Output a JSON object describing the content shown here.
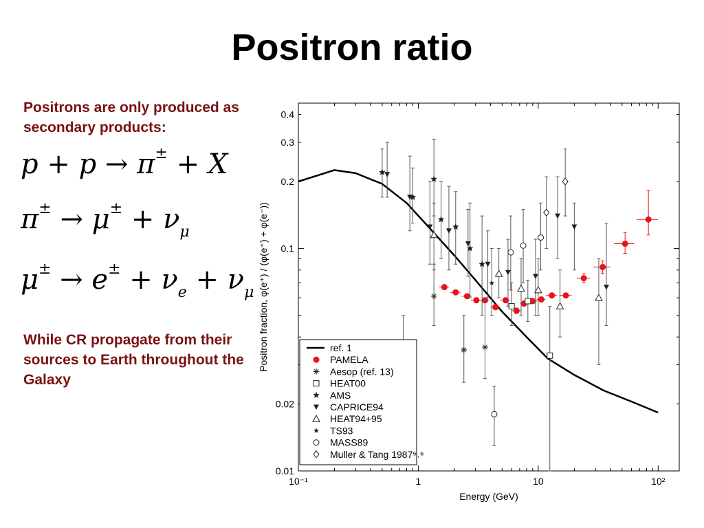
{
  "slide": {
    "title": "Positron ratio",
    "note_top": "Positrons are only produced as secondary products:",
    "note_bottom": "While CR propagate from their sources to Earth throughout the Galaxy"
  },
  "equations": {
    "eq1": {
      "a": "p",
      "plus1": "+",
      "b": "p",
      "arrow": "→",
      "c": "π",
      "c_sup": "±",
      "plus2": "+",
      "d": "X"
    },
    "eq2": {
      "a": "π",
      "a_sup": "±",
      "arrow": "→",
      "b": "μ",
      "b_sup": "±",
      "plus": "+",
      "c": "ν",
      "c_sub": "μ"
    },
    "eq3": {
      "a": "μ",
      "a_sup": "±",
      "arrow": "→",
      "b": "e",
      "b_sup": "±",
      "plus1": "+",
      "c": "ν",
      "c_sub": "e",
      "plus2": "+",
      "d": "ν",
      "d_sub": "μ"
    }
  },
  "chart_data": {
    "type": "scatter",
    "xlabel": "Energy (GeV)",
    "ylabel": "Positron fraction, φ(e⁺) / (φ(e⁺) + φ(e⁻))",
    "xscale": "log",
    "yscale": "log",
    "xlim": [
      0.1,
      150
    ],
    "ylim": [
      0.01,
      0.45
    ],
    "x_ticks": [
      {
        "value": 0.1,
        "label": "10⁻¹"
      },
      {
        "value": 1,
        "label": "1"
      },
      {
        "value": 10,
        "label": "10"
      },
      {
        "value": 100,
        "label": "10²"
      }
    ],
    "y_ticks": [
      {
        "value": 0.4,
        "label": "0.4"
      },
      {
        "value": 0.3,
        "label": "0.3"
      },
      {
        "value": 0.2,
        "label": "0.2"
      },
      {
        "value": 0.1,
        "label": "0.1"
      },
      {
        "value": 0.02,
        "label": "0.02"
      },
      {
        "value": 0.01,
        "label": "0.01"
      }
    ],
    "legend_position": "bottom-left",
    "series": [
      {
        "name": "ref. 1",
        "marker": "line",
        "color": "#000000",
        "points": [
          [
            0.1,
            0.2
          ],
          [
            0.2,
            0.225
          ],
          [
            0.3,
            0.218
          ],
          [
            0.5,
            0.195
          ],
          [
            0.8,
            0.16
          ],
          [
            1.2,
            0.126
          ],
          [
            2,
            0.093
          ],
          [
            3,
            0.072
          ],
          [
            5,
            0.052
          ],
          [
            8,
            0.04
          ],
          [
            12,
            0.032
          ],
          [
            20,
            0.027
          ],
          [
            35,
            0.023
          ],
          [
            60,
            0.0205
          ],
          [
            100,
            0.0183
          ]
        ]
      },
      {
        "name": "PAMELA",
        "marker": "filled-circle",
        "color": "#e8141a",
        "points": [
          {
            "x": 1.65,
            "y": 0.067,
            "xerr": 0.15,
            "ylo": 0.0655,
            "yhi": 0.0685
          },
          {
            "x": 2.05,
            "y": 0.0635,
            "xerr": 0.2,
            "ylo": 0.062,
            "yhi": 0.065
          },
          {
            "x": 2.55,
            "y": 0.061,
            "xerr": 0.25,
            "ylo": 0.0595,
            "yhi": 0.0625
          },
          {
            "x": 3.05,
            "y": 0.0585,
            "xerr": 0.3,
            "ylo": 0.057,
            "yhi": 0.06
          },
          {
            "x": 3.6,
            "y": 0.0585,
            "xerr": 0.3,
            "ylo": 0.057,
            "yhi": 0.06
          },
          {
            "x": 4.4,
            "y": 0.0545,
            "xerr": 0.4,
            "ylo": 0.053,
            "yhi": 0.056
          },
          {
            "x": 5.35,
            "y": 0.0585,
            "xerr": 0.5,
            "ylo": 0.057,
            "yhi": 0.06
          },
          {
            "x": 6.6,
            "y": 0.0525,
            "xerr": 0.6,
            "ylo": 0.051,
            "yhi": 0.054
          },
          {
            "x": 7.6,
            "y": 0.0565,
            "xerr": 0.5,
            "ylo": 0.055,
            "yhi": 0.058
          },
          {
            "x": 9,
            "y": 0.058,
            "xerr": 0.8,
            "ylo": 0.0565,
            "yhi": 0.0595
          },
          {
            "x": 10.6,
            "y": 0.059,
            "xerr": 0.9,
            "ylo": 0.0575,
            "yhi": 0.0605
          },
          {
            "x": 13.0,
            "y": 0.0615,
            "xerr": 1.4,
            "ylo": 0.06,
            "yhi": 0.063
          },
          {
            "x": 17.0,
            "y": 0.0615,
            "xerr": 2.0,
            "ylo": 0.06,
            "yhi": 0.063
          },
          {
            "x": 24.0,
            "y": 0.0735,
            "xerr": 3.0,
            "ylo": 0.07,
            "yhi": 0.077
          },
          {
            "x": 34.5,
            "y": 0.0825,
            "xerr": 5.5,
            "ylo": 0.077,
            "yhi": 0.088
          },
          {
            "x": 53.0,
            "y": 0.105,
            "xerr": 10,
            "ylo": 0.095,
            "yhi": 0.118
          },
          {
            "x": 83.0,
            "y": 0.135,
            "xerr": 17,
            "ylo": 0.115,
            "yhi": 0.182
          }
        ]
      },
      {
        "name": "Aesop (ref. 13)",
        "marker": "asterisk",
        "color": "#222222",
        "points": [
          {
            "x": 0.75,
            "y": 0.035,
            "ylo": 0.027,
            "yhi": 0.05
          },
          {
            "x": 1.35,
            "y": 0.061,
            "ylo": 0.045,
            "yhi": 0.085
          },
          {
            "x": 2.4,
            "y": 0.035,
            "ylo": 0.025,
            "yhi": 0.05
          },
          {
            "x": 3.6,
            "y": 0.036,
            "ylo": 0.026,
            "yhi": 0.058
          }
        ]
      },
      {
        "name": "HEAT00",
        "marker": "open-square",
        "color": "#222222",
        "points": [
          {
            "x": 6.0,
            "y": 0.055,
            "ylo": 0.045,
            "yhi": 0.07
          },
          {
            "x": 8.2,
            "y": 0.058,
            "ylo": 0.047,
            "yhi": 0.072
          },
          {
            "x": 12.5,
            "y": 0.033,
            "ylo": 0.01,
            "yhi": 0.055
          }
        ]
      },
      {
        "name": "AMS",
        "marker": "filled-star",
        "color": "#222222",
        "points": [
          {
            "x": 0.5,
            "y": 0.22,
            "ylo": 0.17,
            "yhi": 0.28
          },
          {
            "x": 0.9,
            "y": 0.17,
            "ylo": 0.13,
            "yhi": 0.23
          },
          {
            "x": 1.35,
            "y": 0.205,
            "ylo": 0.14,
            "yhi": 0.31
          },
          {
            "x": 1.55,
            "y": 0.135,
            "ylo": 0.09,
            "yhi": 0.2
          },
          {
            "x": 2.05,
            "y": 0.125,
            "ylo": 0.085,
            "yhi": 0.18
          },
          {
            "x": 2.7,
            "y": 0.1,
            "ylo": 0.06,
            "yhi": 0.16
          },
          {
            "x": 3.4,
            "y": 0.085,
            "ylo": 0.05,
            "yhi": 0.14
          }
        ]
      },
      {
        "name": "CAPRICE94",
        "marker": "filled-triangle-down",
        "color": "#222222",
        "points": [
          {
            "x": 0.55,
            "y": 0.215,
            "ylo": 0.17,
            "yhi": 0.3
          },
          {
            "x": 0.85,
            "y": 0.17,
            "ylo": 0.12,
            "yhi": 0.26
          },
          {
            "x": 1.25,
            "y": 0.125,
            "ylo": 0.085,
            "yhi": 0.2
          },
          {
            "x": 1.8,
            "y": 0.12,
            "ylo": 0.08,
            "yhi": 0.19
          },
          {
            "x": 2.6,
            "y": 0.105,
            "ylo": 0.075,
            "yhi": 0.15
          },
          {
            "x": 3.8,
            "y": 0.085,
            "ylo": 0.06,
            "yhi": 0.12
          },
          {
            "x": 5.6,
            "y": 0.078,
            "ylo": 0.055,
            "yhi": 0.11
          },
          {
            "x": 9.5,
            "y": 0.075,
            "ylo": 0.05,
            "yhi": 0.11
          },
          {
            "x": 14.5,
            "y": 0.14,
            "ylo": 0.09,
            "yhi": 0.21
          },
          {
            "x": 20.0,
            "y": 0.125,
            "ylo": 0.08,
            "yhi": 0.16
          },
          {
            "x": 37.0,
            "y": 0.067,
            "ylo": 0.045,
            "yhi": 0.13
          }
        ]
      },
      {
        "name": "HEAT94+95",
        "marker": "open-triangle-up",
        "color": "#222222",
        "points": [
          {
            "x": 1.35,
            "y": 0.115,
            "ylo": 0.08,
            "yhi": 0.16
          },
          {
            "x": 4.7,
            "y": 0.077,
            "ylo": 0.06,
            "yhi": 0.1
          },
          {
            "x": 7.2,
            "y": 0.066,
            "ylo": 0.05,
            "yhi": 0.09
          },
          {
            "x": 10.0,
            "y": 0.065,
            "ylo": 0.05,
            "yhi": 0.09
          },
          {
            "x": 15.2,
            "y": 0.055,
            "ylo": 0.04,
            "yhi": 0.08
          },
          {
            "x": 32.0,
            "y": 0.06,
            "ylo": 0.03,
            "yhi": 0.09
          }
        ]
      },
      {
        "name": "TS93",
        "marker": "filled-star-small",
        "color": "#222222",
        "points": [
          {
            "x": 4.1,
            "y": 0.07,
            "ylo": 0.05,
            "yhi": 0.1
          }
        ]
      },
      {
        "name": "MASS89",
        "marker": "open-circle",
        "color": "#222222",
        "points": [
          {
            "x": 4.3,
            "y": 0.018,
            "ylo": 0.013,
            "yhi": 0.024
          },
          {
            "x": 5.9,
            "y": 0.096,
            "ylo": 0.065,
            "yhi": 0.14
          },
          {
            "x": 7.5,
            "y": 0.103,
            "ylo": 0.07,
            "yhi": 0.15
          },
          {
            "x": 10.5,
            "y": 0.112,
            "ylo": 0.08,
            "yhi": 0.16
          }
        ]
      },
      {
        "name": "Muller & Tang 1987⁵˒⁶",
        "marker": "open-diamond",
        "color": "#222222",
        "points": [
          {
            "x": 11.7,
            "y": 0.145,
            "ylo": 0.1,
            "yhi": 0.21
          },
          {
            "x": 16.8,
            "y": 0.2,
            "ylo": 0.14,
            "yhi": 0.28
          }
        ]
      }
    ]
  }
}
